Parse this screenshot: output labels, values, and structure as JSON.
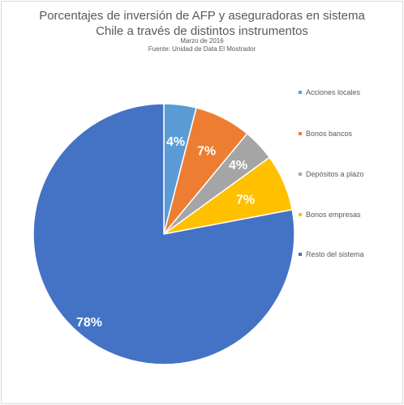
{
  "chart_data": {
    "type": "pie",
    "title": "Porcentajes de inversión de AFP y aseguradoras en sistema Chile a través de distintos instrumentos",
    "title_lines": [
      "Porcentajes de inversión de AFP y aseguradoras en sistema",
      "Chile a través de distintos instrumentos"
    ],
    "subtitle_lines": [
      "Marzo de 2016",
      "Fuente: Unidad de Data El Mostrador"
    ],
    "categories": [
      "Acciones locales",
      "Bonos bancos",
      "Depósitos a plazo",
      "Bonos empresas",
      "Resto del sistema"
    ],
    "values": [
      4,
      7,
      4,
      7,
      78
    ],
    "data_labels": [
      "4%",
      "7%",
      "4%",
      "7%",
      "78%"
    ],
    "colors": [
      "#5B9BD5",
      "#ED7D31",
      "#A5A5A5",
      "#FFC000",
      "#4472C4"
    ],
    "legend_position": "right"
  }
}
